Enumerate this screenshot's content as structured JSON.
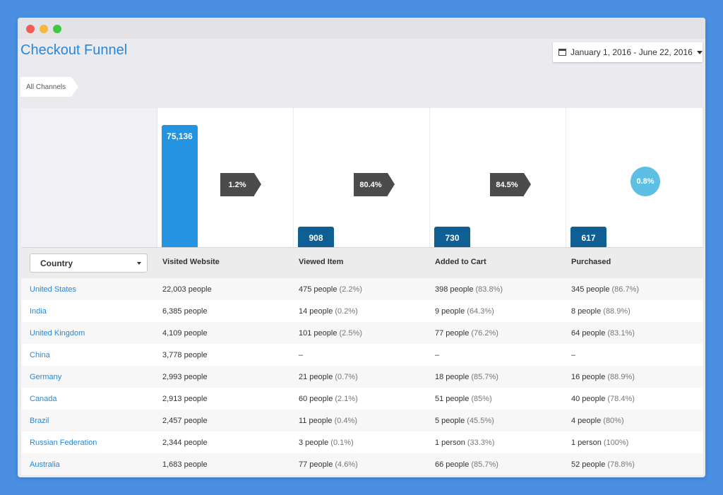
{
  "window": {
    "controls": [
      "close",
      "minimize",
      "maximize"
    ]
  },
  "header": {
    "title": "Checkout Funnel",
    "date_range": "January 1, 2016 - June 22, 2016"
  },
  "filter": {
    "chip": "All Channels"
  },
  "funnel": {
    "stages": [
      {
        "name": "Visited Website",
        "value": "75,136",
        "conversion": "1.2%"
      },
      {
        "name": "Viewed Item",
        "value": "908",
        "conversion": "80.4%"
      },
      {
        "name": "Added to Cart",
        "value": "730",
        "conversion": "84.5%"
      },
      {
        "name": "Purchased",
        "value": "617",
        "conversion": "0.8%"
      }
    ]
  },
  "table": {
    "select_label": "Country",
    "columns": [
      "Visited Website",
      "Viewed Item",
      "Added to Cart",
      "Purchased"
    ],
    "rows": [
      {
        "country": "United States",
        "visited": "22,003 people",
        "viewed": "475 people",
        "viewed_pct": "(2.2%)",
        "added": "398 people",
        "added_pct": "(83.8%)",
        "purchased": "345 people",
        "purchased_pct": "(86.7%)"
      },
      {
        "country": "India",
        "visited": "6,385 people",
        "viewed": "14 people",
        "viewed_pct": "(0.2%)",
        "added": "9 people",
        "added_pct": "(64.3%)",
        "purchased": "8 people",
        "purchased_pct": "(88.9%)"
      },
      {
        "country": "United Kingdom",
        "visited": "4,109 people",
        "viewed": "101 people",
        "viewed_pct": "(2.5%)",
        "added": "77 people",
        "added_pct": "(76.2%)",
        "purchased": "64 people",
        "purchased_pct": "(83.1%)"
      },
      {
        "country": "China",
        "visited": "3,778 people",
        "viewed": "–",
        "viewed_pct": "",
        "added": "–",
        "added_pct": "",
        "purchased": "–",
        "purchased_pct": ""
      },
      {
        "country": "Germany",
        "visited": "2,993 people",
        "viewed": "21 people",
        "viewed_pct": "(0.7%)",
        "added": "18 people",
        "added_pct": "(85.7%)",
        "purchased": "16 people",
        "purchased_pct": "(88.9%)"
      },
      {
        "country": "Canada",
        "visited": "2,913 people",
        "viewed": "60 people",
        "viewed_pct": "(2.1%)",
        "added": "51 people",
        "added_pct": "(85%)",
        "purchased": "40 people",
        "purchased_pct": "(78.4%)"
      },
      {
        "country": "Brazil",
        "visited": "2,457 people",
        "viewed": "11 people",
        "viewed_pct": "(0.4%)",
        "added": "5 people",
        "added_pct": "(45.5%)",
        "purchased": "4 people",
        "purchased_pct": "(80%)"
      },
      {
        "country": "Russian Federation",
        "visited": "2,344 people",
        "viewed": "3 people",
        "viewed_pct": "(0.1%)",
        "added": "1 person",
        "added_pct": "(33.3%)",
        "purchased": "1 person",
        "purchased_pct": "(100%)"
      },
      {
        "country": "Australia",
        "visited": "1,683 people",
        "viewed": "77 people",
        "viewed_pct": "(4.6%)",
        "added": "66 people",
        "added_pct": "(85.7%)",
        "purchased": "52 people",
        "purchased_pct": "(78.8%)"
      }
    ]
  },
  "colors": {
    "accent": "#2a87d6",
    "bar_first": "#2493e0",
    "bar_rest": "#0f5f94",
    "arrow": "#4b4b4b",
    "circle": "#5cbfe3",
    "background": "#4a8fe2"
  }
}
